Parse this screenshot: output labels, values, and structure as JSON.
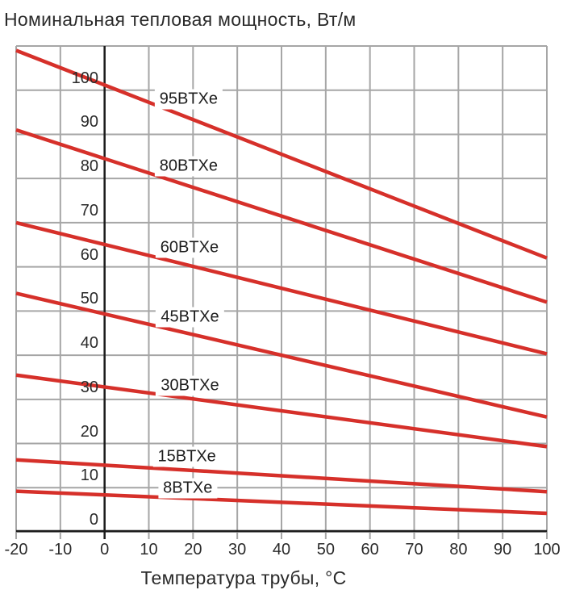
{
  "colors": {
    "line": "#d6302a",
    "grid": "#a6a6a6",
    "axis": "#1c1c1c",
    "text": "#2a2a2a"
  },
  "chart_data": {
    "type": "line",
    "title": "Номинальная тепловая мощность, Вт/м",
    "xlabel": "Температура трубы, °C",
    "ylabel": "Номинальная тепловая мощность, Вт/м",
    "xlim": [
      -20,
      100
    ],
    "ylim": [
      0,
      110
    ],
    "x_ticks": [
      -20,
      -10,
      0,
      10,
      20,
      30,
      40,
      50,
      60,
      70,
      80,
      90,
      100
    ],
    "y_ticks": [
      0,
      10,
      20,
      30,
      40,
      50,
      60,
      70,
      80,
      90,
      100
    ],
    "grid_step": 10,
    "grid": true,
    "legend_position": "inline-labels",
    "series": [
      {
        "name": "95BTXe",
        "x": [
          -20,
          100
        ],
        "values": [
          109,
          62
        ],
        "label_pos": [
          19.0,
          98.0
        ]
      },
      {
        "name": "80BTXe",
        "x": [
          -20,
          100
        ],
        "values": [
          91,
          52
        ],
        "label_pos": [
          19.0,
          82.8
        ]
      },
      {
        "name": "60BTXe",
        "x": [
          -20,
          100
        ],
        "values": [
          70,
          40.3
        ],
        "label_pos": [
          19.2,
          64.4
        ]
      },
      {
        "name": "45BTXe",
        "x": [
          -20,
          100
        ],
        "values": [
          54,
          26
        ],
        "label_pos": [
          19.3,
          48.6
        ]
      },
      {
        "name": "30BTXe",
        "x": [
          -20,
          100
        ],
        "values": [
          35.5,
          19.3
        ],
        "label_pos": [
          19.3,
          33.1
        ]
      },
      {
        "name": "15BTXe",
        "x": [
          -20,
          100
        ],
        "values": [
          16.3,
          9.1
        ],
        "label_pos": [
          18.6,
          17.0
        ]
      },
      {
        "name": "8BTXe",
        "x": [
          -20,
          100
        ],
        "values": [
          9.2,
          4.2
        ],
        "label_pos": [
          18.8,
          9.9
        ]
      }
    ]
  }
}
